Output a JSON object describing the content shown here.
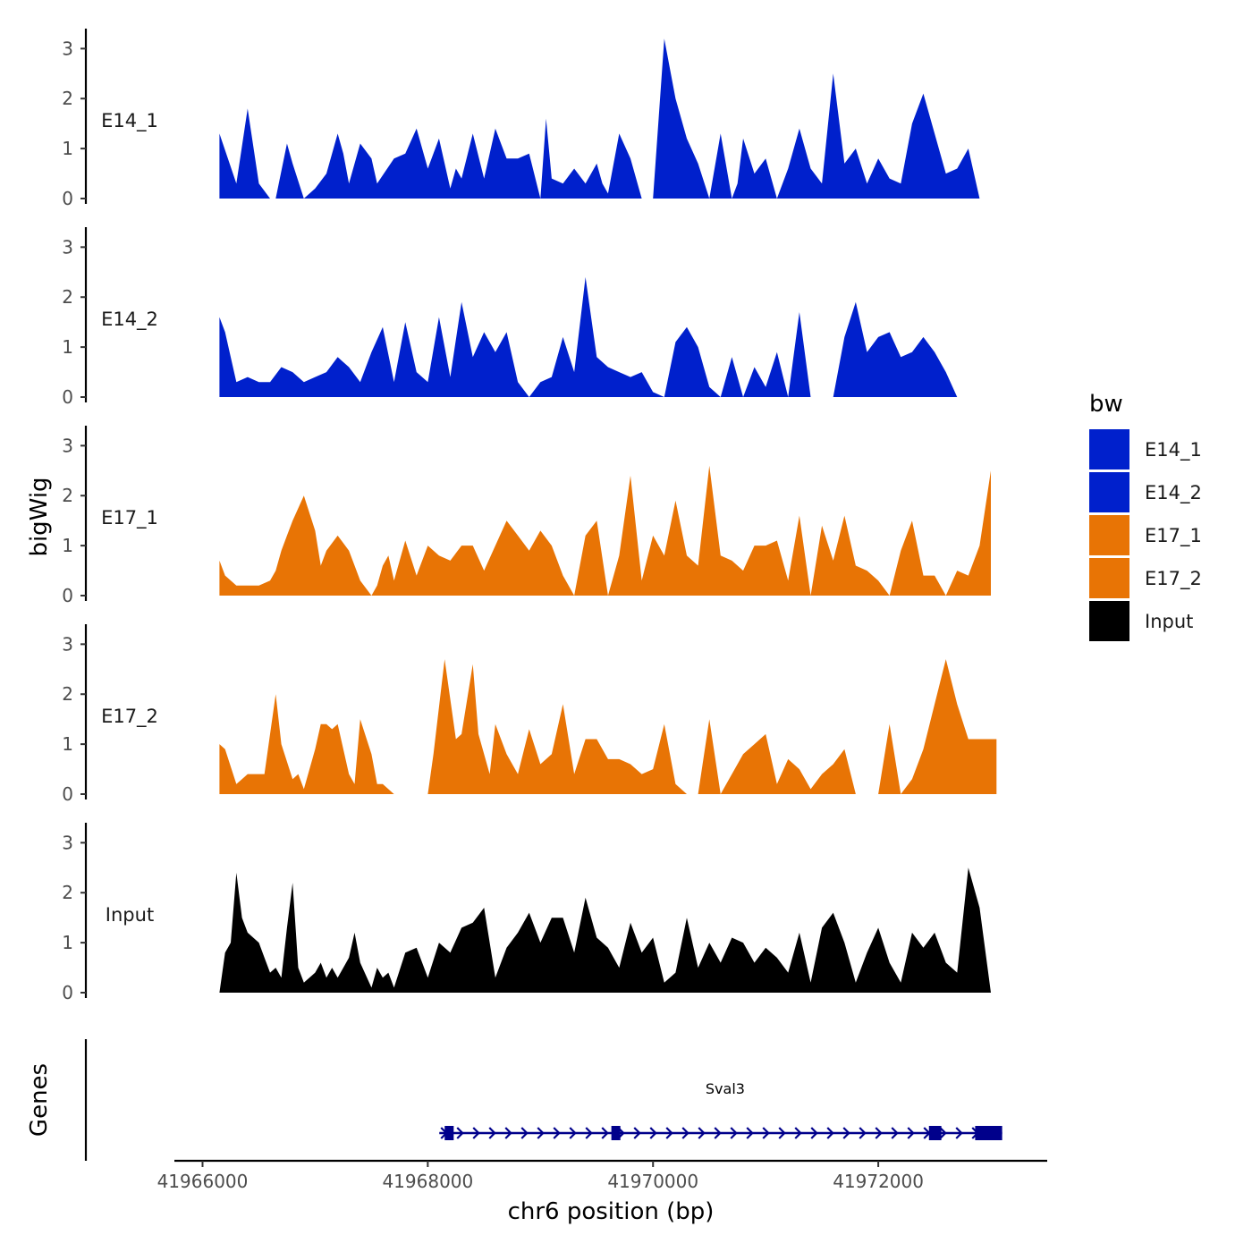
{
  "chart_data": {
    "type": "area",
    "region": {
      "chromosome": "chr6",
      "start": 41966150,
      "end": 41973050
    },
    "xlabel": "chr6 position (bp)",
    "ylabel": "bigWig",
    "genes_label": "Genes",
    "x_ticks": [
      41966000,
      41968000,
      41970000,
      41972000
    ],
    "x_tick_labels": [
      "41966000",
      "41968000",
      "41970000",
      "41972000"
    ],
    "x_range": [
      41965750,
      41973500
    ],
    "y_range": [
      0,
      3.4
    ],
    "y_ticks": [
      0,
      1,
      2,
      3
    ],
    "y_tick_labels": [
      "0",
      "1",
      "2",
      "3"
    ],
    "legend": {
      "title": "bw",
      "entries": [
        {
          "label": "E14_1",
          "color": "#0020CC"
        },
        {
          "label": "E14_2",
          "color": "#0020CC"
        },
        {
          "label": "E17_1",
          "color": "#E87405"
        },
        {
          "label": "E17_2",
          "color": "#E87405"
        },
        {
          "label": "Input",
          "color": "#000000"
        }
      ]
    },
    "series": [
      {
        "name": "E14_1",
        "color": "#0020CC",
        "x": [
          41966150,
          41966300,
          41966400,
          41966500,
          41966600,
          41966650,
          41966750,
          41966800,
          41966900,
          41967000,
          41967100,
          41967200,
          41967250,
          41967300,
          41967350,
          41967400,
          41967500,
          41967550,
          41967700,
          41967800,
          41967900,
          41968000,
          41968100,
          41968200,
          41968250,
          41968300,
          41968400,
          41968500,
          41968600,
          41968700,
          41968800,
          41968900,
          41969000,
          41969050,
          41969100,
          41969200,
          41969300,
          41969400,
          41969500,
          41969550,
          41969600,
          41969700,
          41969800,
          41969900,
          41970000,
          41970100,
          41970200,
          41970300,
          41970400,
          41970500,
          41970600,
          41970700,
          41970750,
          41970800,
          41970900,
          41971000,
          41971100,
          41971200,
          41971300,
          41971400,
          41971500,
          41971600,
          41971700,
          41971800,
          41971900,
          41972000,
          41972100,
          41972200,
          41972300,
          41972400,
          41972500,
          41972600,
          41972700,
          41972800,
          41972900,
          41973000
        ],
        "y": [
          1.3,
          0.3,
          1.8,
          0.3,
          0.0,
          0.0,
          1.1,
          0.7,
          0.0,
          0.2,
          0.5,
          1.3,
          0.9,
          0.3,
          0.7,
          1.1,
          0.8,
          0.3,
          0.8,
          0.9,
          1.4,
          0.6,
          1.2,
          0.2,
          0.6,
          0.4,
          1.3,
          0.4,
          1.4,
          0.8,
          0.8,
          0.9,
          0.0,
          1.6,
          0.4,
          0.3,
          0.6,
          0.3,
          0.7,
          0.3,
          0.1,
          1.3,
          0.8,
          0.0,
          0.0,
          3.2,
          2.0,
          1.2,
          0.7,
          0.0,
          1.3,
          0.0,
          0.3,
          1.2,
          0.5,
          0.8,
          0.0,
          0.6,
          1.4,
          0.6,
          0.3,
          2.5,
          0.7,
          1.0,
          0.3,
          0.8,
          0.4,
          0.3,
          1.5,
          2.1,
          1.3,
          0.5,
          0.6,
          1.0,
          0.0,
          0.0
        ]
      },
      {
        "name": "E14_2",
        "color": "#0020CC",
        "x": [
          41966150,
          41966200,
          41966300,
          41966400,
          41966500,
          41966600,
          41966700,
          41966800,
          41966900,
          41967000,
          41967100,
          41967200,
          41967300,
          41967400,
          41967500,
          41967600,
          41967700,
          41967800,
          41967900,
          41968000,
          41968100,
          41968200,
          41968300,
          41968400,
          41968500,
          41968600,
          41968700,
          41968800,
          41968900,
          41969000,
          41969100,
          41969200,
          41969300,
          41969400,
          41969500,
          41969600,
          41969700,
          41969800,
          41969900,
          41970000,
          41970100,
          41970200,
          41970300,
          41970400,
          41970500,
          41970600,
          41970700,
          41970800,
          41970900,
          41971000,
          41971100,
          41971200,
          41971300,
          41971400,
          41971500,
          41971600,
          41971700,
          41971800,
          41971900,
          41972000,
          41972100,
          41972200,
          41972300,
          41972400,
          41972500,
          41972600,
          41972700,
          41972800,
          41972900,
          41973000,
          41973050
        ],
        "y": [
          1.6,
          1.3,
          0.3,
          0.4,
          0.3,
          0.3,
          0.6,
          0.5,
          0.3,
          0.4,
          0.5,
          0.8,
          0.6,
          0.3,
          0.9,
          1.4,
          0.3,
          1.5,
          0.5,
          0.3,
          1.6,
          0.4,
          1.9,
          0.8,
          1.3,
          0.9,
          1.3,
          0.3,
          0.0,
          0.3,
          0.4,
          1.2,
          0.5,
          2.4,
          0.8,
          0.6,
          0.5,
          0.4,
          0.5,
          0.1,
          0.0,
          1.1,
          1.4,
          1.0,
          0.2,
          0.0,
          0.8,
          0.0,
          0.6,
          0.2,
          0.9,
          0.0,
          1.7,
          0.0,
          0.0,
          0.0,
          1.2,
          1.9,
          0.9,
          1.2,
          1.3,
          0.8,
          0.9,
          1.2,
          0.9,
          0.5,
          0.0,
          0.0,
          0.0,
          0.0,
          0.0
        ]
      },
      {
        "name": "E17_1",
        "color": "#E87405",
        "x": [
          41966150,
          41966200,
          41966300,
          41966400,
          41966500,
          41966600,
          41966650,
          41966700,
          41966750,
          41966800,
          41966900,
          41967000,
          41967050,
          41967100,
          41967200,
          41967300,
          41967400,
          41967500,
          41967550,
          41967600,
          41967650,
          41967700,
          41967800,
          41967900,
          41968000,
          41968100,
          41968200,
          41968300,
          41968400,
          41968500,
          41968600,
          41968700,
          41968800,
          41968900,
          41969000,
          41969100,
          41969200,
          41969300,
          41969400,
          41969500,
          41969600,
          41969700,
          41969800,
          41969900,
          41970000,
          41970100,
          41970200,
          41970300,
          41970400,
          41970500,
          41970600,
          41970700,
          41970800,
          41970900,
          41971000,
          41971100,
          41971200,
          41971300,
          41971400,
          41971500,
          41971600,
          41971700,
          41971800,
          41971900,
          41972000,
          41972100,
          41972200,
          41972300,
          41972400,
          41972500,
          41972600,
          41972700,
          41972800,
          41972900,
          41973000
        ],
        "y": [
          0.7,
          0.4,
          0.2,
          0.2,
          0.2,
          0.3,
          0.5,
          0.9,
          1.2,
          1.5,
          2.0,
          1.3,
          0.6,
          0.9,
          1.2,
          0.9,
          0.3,
          0.0,
          0.2,
          0.6,
          0.8,
          0.3,
          1.1,
          0.4,
          1.0,
          0.8,
          0.7,
          1.0,
          1.0,
          0.5,
          1.0,
          1.5,
          1.2,
          0.9,
          1.3,
          1.0,
          0.4,
          0.0,
          1.2,
          1.5,
          0.0,
          0.8,
          2.4,
          0.3,
          1.2,
          0.8,
          1.9,
          0.8,
          0.6,
          2.6,
          0.8,
          0.7,
          0.5,
          1.0,
          1.0,
          1.1,
          0.3,
          1.6,
          0.0,
          1.4,
          0.7,
          1.6,
          0.6,
          0.5,
          0.3,
          0.0,
          0.9,
          1.5,
          0.4,
          0.4,
          0.0,
          0.5,
          0.4,
          1.0,
          2.5
        ]
      },
      {
        "name": "E17_2",
        "color": "#E87405",
        "x": [
          41966150,
          41966200,
          41966300,
          41966350,
          41966400,
          41966500,
          41966550,
          41966600,
          41966650,
          41966700,
          41966800,
          41966850,
          41966900,
          41967000,
          41967050,
          41967100,
          41967150,
          41967200,
          41967300,
          41967350,
          41967400,
          41967500,
          41967550,
          41967600,
          41967700,
          41967800,
          41967900,
          41968000,
          41968050,
          41968150,
          41968250,
          41968300,
          41968400,
          41968450,
          41968550,
          41968600,
          41968700,
          41968800,
          41968900,
          41969000,
          41969100,
          41969200,
          41969300,
          41969400,
          41969500,
          41969600,
          41969700,
          41969800,
          41969900,
          41970000,
          41970100,
          41970200,
          41970300,
          41970400,
          41970500,
          41970600,
          41970700,
          41970800,
          41970900,
          41971000,
          41971100,
          41971200,
          41971300,
          41971400,
          41971500,
          41971600,
          41971700,
          41971800,
          41971900,
          41972000,
          41972100,
          41972200,
          41972300,
          41972400,
          41972500,
          41972600,
          41972700,
          41972800,
          41972900,
          41973000,
          41973050
        ],
        "y": [
          1.0,
          0.9,
          0.2,
          0.3,
          0.4,
          0.4,
          0.4,
          1.2,
          2.0,
          1.0,
          0.3,
          0.4,
          0.1,
          0.9,
          1.4,
          1.4,
          1.3,
          1.4,
          0.4,
          0.2,
          1.5,
          0.8,
          0.2,
          0.2,
          0.0,
          0.0,
          0.0,
          0.0,
          0.8,
          2.7,
          1.1,
          1.2,
          2.6,
          1.2,
          0.4,
          1.4,
          0.8,
          0.4,
          1.3,
          0.6,
          0.8,
          1.8,
          0.4,
          1.1,
          1.1,
          0.7,
          0.7,
          0.6,
          0.4,
          0.5,
          1.4,
          0.2,
          0.0,
          0.0,
          1.5,
          0.0,
          0.4,
          0.8,
          1.0,
          1.2,
          0.2,
          0.7,
          0.5,
          0.1,
          0.4,
          0.6,
          0.9,
          0.0,
          0.0,
          0.0,
          1.4,
          0.0,
          0.3,
          0.9,
          1.8,
          2.7,
          1.8,
          1.1,
          1.1,
          1.1,
          1.1
        ]
      },
      {
        "name": "Input",
        "color": "#000000",
        "x": [
          41966150,
          41966200,
          41966250,
          41966300,
          41966350,
          41966400,
          41966500,
          41966550,
          41966600,
          41966650,
          41966700,
          41966750,
          41966800,
          41966850,
          41966900,
          41967000,
          41967050,
          41967100,
          41967150,
          41967200,
          41967250,
          41967300,
          41967350,
          41967400,
          41967500,
          41967550,
          41967600,
          41967650,
          41967700,
          41967800,
          41967900,
          41968000,
          41968100,
          41968200,
          41968300,
          41968400,
          41968500,
          41968600,
          41968700,
          41968800,
          41968900,
          41969000,
          41969100,
          41969200,
          41969300,
          41969400,
          41969500,
          41969600,
          41969700,
          41969800,
          41969900,
          41970000,
          41970100,
          41970200,
          41970300,
          41970400,
          41970500,
          41970600,
          41970700,
          41970800,
          41970900,
          41971000,
          41971100,
          41971200,
          41971300,
          41971400,
          41971500,
          41971600,
          41971700,
          41971800,
          41971900,
          41972000,
          41972100,
          41972200,
          41972300,
          41972400,
          41972500,
          41972600,
          41972700,
          41972800,
          41972900,
          41973000,
          41973050
        ],
        "y": [
          0.0,
          0.8,
          1.0,
          2.4,
          1.5,
          1.2,
          1.0,
          0.7,
          0.4,
          0.5,
          0.3,
          1.3,
          2.2,
          0.5,
          0.2,
          0.4,
          0.6,
          0.3,
          0.5,
          0.3,
          0.5,
          0.7,
          1.2,
          0.6,
          0.1,
          0.5,
          0.3,
          0.4,
          0.1,
          0.8,
          0.9,
          0.3,
          1.0,
          0.8,
          1.3,
          1.4,
          1.7,
          0.3,
          0.9,
          1.2,
          1.6,
          1.0,
          1.5,
          1.5,
          0.8,
          1.9,
          1.1,
          0.9,
          0.5,
          1.4,
          0.8,
          1.1,
          0.2,
          0.4,
          1.5,
          0.5,
          1.0,
          0.6,
          1.1,
          1.0,
          0.6,
          0.9,
          0.7,
          0.4,
          1.2,
          0.2,
          1.3,
          1.6,
          1.0,
          0.2,
          0.8,
          1.3,
          0.6,
          0.2,
          1.2,
          0.9,
          1.2,
          0.6,
          0.4,
          2.5,
          1.7,
          0.0,
          0.0
        ]
      }
    ],
    "genes": [
      {
        "name": "Sval3",
        "strand": "+",
        "color": "#00008B",
        "start": 41968150,
        "end": 41973100,
        "exons": [
          {
            "start": 41968150,
            "end": 41968230
          },
          {
            "start": 41969630,
            "end": 41969710
          },
          {
            "start": 41972450,
            "end": 41972560
          },
          {
            "start": 41972860,
            "end": 41973100
          }
        ]
      }
    ]
  }
}
